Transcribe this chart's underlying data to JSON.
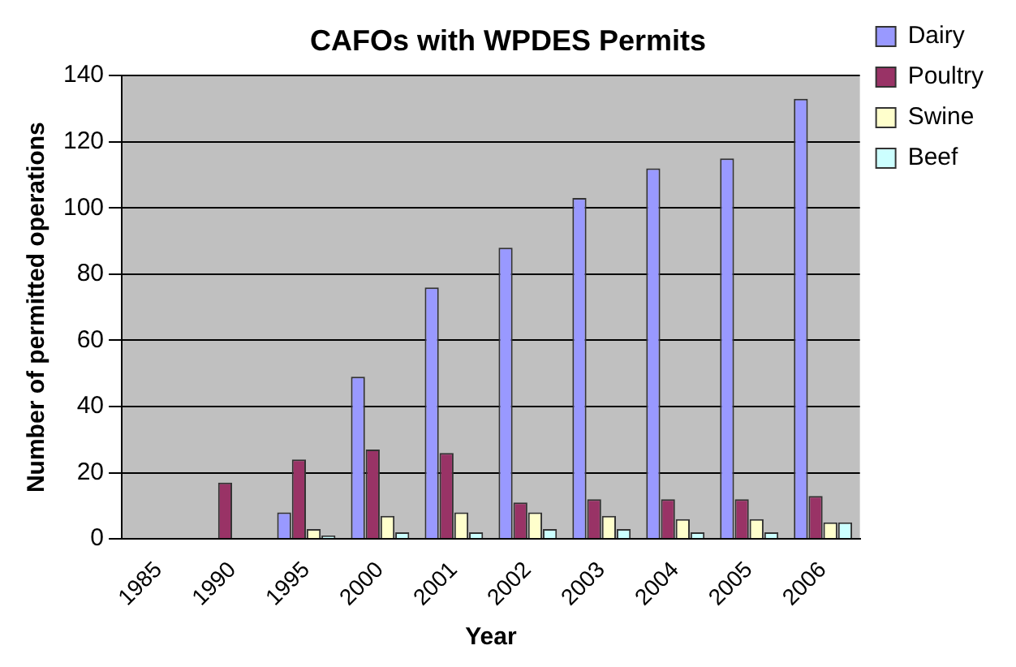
{
  "chart_data": {
    "type": "bar",
    "title": "CAFOs with WPDES Permits",
    "xlabel": "Year",
    "ylabel": "Number of permitted operations",
    "categories": [
      "1985",
      "1990",
      "1995",
      "2000",
      "2001",
      "2002",
      "2003",
      "2004",
      "2005",
      "2006"
    ],
    "series": [
      {
        "name": "Dairy",
        "color": "#9999ff",
        "values": [
          0,
          0,
          8,
          49,
          76,
          88,
          103,
          112,
          115,
          133
        ]
      },
      {
        "name": "Poultry",
        "color": "#993366",
        "values": [
          0,
          17,
          24,
          27,
          26,
          11,
          12,
          12,
          12,
          13
        ]
      },
      {
        "name": "Swine",
        "color": "#ffffcc",
        "values": [
          0,
          0,
          3,
          7,
          8,
          8,
          7,
          6,
          6,
          5
        ]
      },
      {
        "name": "Beef",
        "color": "#ccffff",
        "values": [
          0,
          0,
          1,
          2,
          2,
          3,
          3,
          2,
          2,
          5
        ]
      }
    ],
    "ylim": [
      0,
      140
    ],
    "yticks": [
      0,
      20,
      40,
      60,
      80,
      100,
      120,
      140
    ],
    "grid": "y",
    "legend": "top right"
  }
}
